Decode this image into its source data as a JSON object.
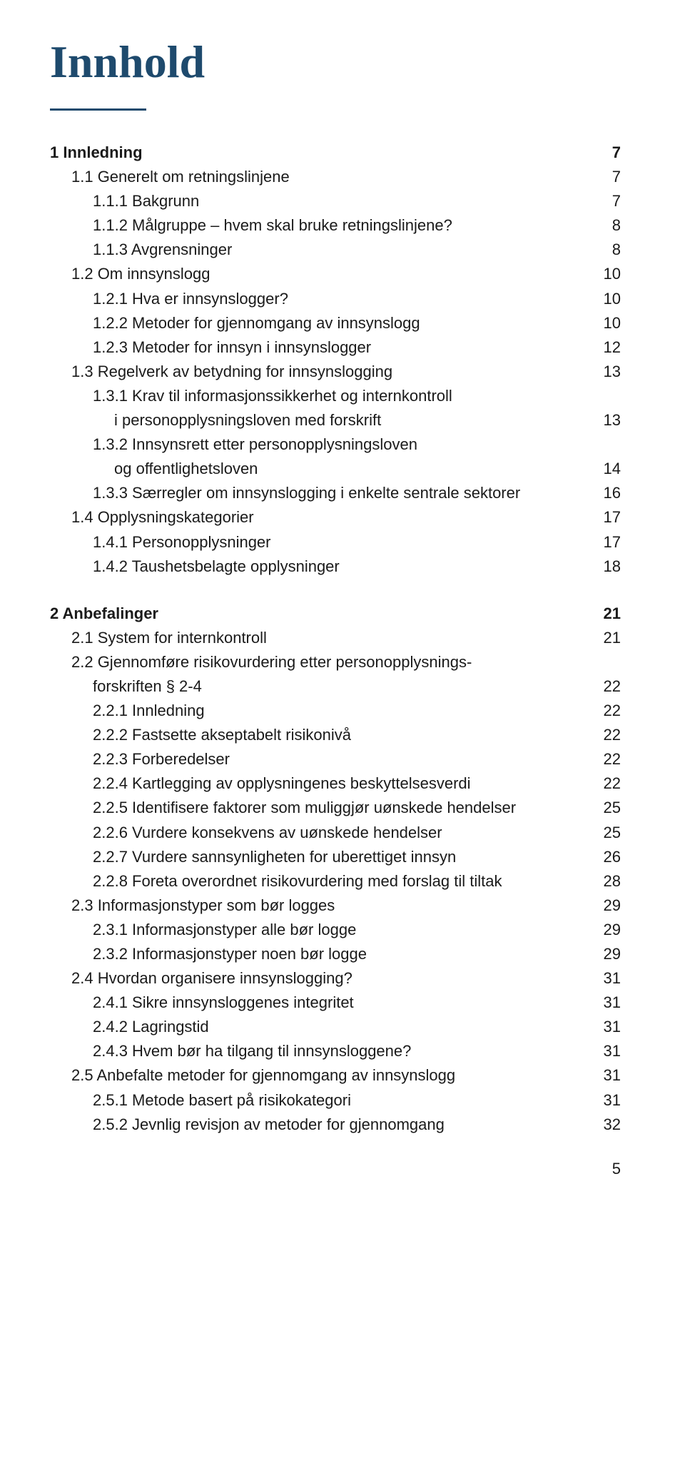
{
  "title": "Innhold",
  "page_number": "5",
  "colors": {
    "heading": "#1e4a6d",
    "text": "#1a1a1a",
    "background": "#ffffff"
  },
  "typography": {
    "title_fontsize_pt": 48,
    "body_fontsize_pt": 16,
    "title_font": "Georgia serif",
    "body_font": "sans-serif"
  },
  "sections": [
    {
      "entries": [
        {
          "label": "1 Innledning",
          "page": "7",
          "bold": true,
          "indent": 0
        },
        {
          "label": "1.1 Generelt om retningslinjene",
          "page": "7",
          "indent": 1
        },
        {
          "label": "1.1.1 Bakgrunn",
          "page": "7",
          "indent": 2
        },
        {
          "label": "1.1.2 Målgruppe – hvem skal bruke retningslinjene?",
          "page": "8",
          "indent": 2
        },
        {
          "label": "1.1.3 Avgrensninger",
          "page": "8",
          "indent": 2
        },
        {
          "label": "1.2 Om innsynslogg",
          "page": "10",
          "indent": 1
        },
        {
          "label": "1.2.1 Hva er innsynslogger?",
          "page": "10",
          "indent": 2
        },
        {
          "label": "1.2.2 Metoder for gjennomgang av innsynslogg",
          "page": "10",
          "indent": 2
        },
        {
          "label": "1.2.3 Metoder for innsyn i innsynslogger",
          "page": "12",
          "indent": 2
        },
        {
          "label": "1.3 Regelverk av betydning for innsynslogging",
          "page": "13",
          "indent": 1
        },
        {
          "label": "1.3.1 Krav til informasjonssikkerhet og internkontroll",
          "page": "",
          "indent": 2
        },
        {
          "label": "i personopplysningsloven med forskrift",
          "page": "13",
          "indent": 0,
          "cont": true
        },
        {
          "label": "1.3.2 Innsynsrett etter personopplysningsloven",
          "page": "",
          "indent": 2
        },
        {
          "label": "og offentlighetsloven",
          "page": "14",
          "indent": 0,
          "cont": true
        },
        {
          "label": "1.3.3 Særregler om innsynslogging i enkelte sentrale sektorer",
          "page": "16",
          "indent": 2
        },
        {
          "label": "1.4 Opplysningskategorier",
          "page": "17",
          "indent": 1
        },
        {
          "label": "1.4.1 Personopplysninger",
          "page": "17",
          "indent": 2
        },
        {
          "label": "1.4.2 Taushetsbelagte opplysninger",
          "page": "18",
          "indent": 2
        }
      ]
    },
    {
      "entries": [
        {
          "label": "2 Anbefalinger",
          "page": "21",
          "bold": true,
          "indent": 0
        },
        {
          "label": "2.1 System for internkontroll",
          "page": "21",
          "indent": 1
        },
        {
          "label": "2.2 Gjennomføre risikovurdering etter personopplysnings-",
          "page": "",
          "indent": 1
        },
        {
          "label": "forskriften § 2-4",
          "page": "22",
          "indent": 2
        },
        {
          "label": "2.2.1 Innledning",
          "page": "22",
          "indent": 2
        },
        {
          "label": "2.2.2 Fastsette akseptabelt risikonivå",
          "page": "22",
          "indent": 2
        },
        {
          "label": "2.2.3 Forberedelser",
          "page": "22",
          "indent": 2
        },
        {
          "label": "2.2.4 Kartlegging av opplysningenes beskyttelsesverdi",
          "page": "22",
          "indent": 2
        },
        {
          "label": "2.2.5 Identifisere faktorer som muliggjør uønskede hendelser",
          "page": "25",
          "indent": 2
        },
        {
          "label": "2.2.6 Vurdere konsekvens av uønskede hendelser",
          "page": "25",
          "indent": 2
        },
        {
          "label": "2.2.7 Vurdere sannsynligheten for uberettiget innsyn",
          "page": "26",
          "indent": 2
        },
        {
          "label": "2.2.8 Foreta overordnet risikovurdering med forslag til tiltak",
          "page": "28",
          "indent": 2
        },
        {
          "label": "2.3 Informasjonstyper som bør logges",
          "page": "29",
          "indent": 1
        },
        {
          "label": "2.3.1 Informasjonstyper alle bør logge",
          "page": "29",
          "indent": 2
        },
        {
          "label": "2.3.2 Informasjonstyper noen bør logge",
          "page": "29",
          "indent": 2
        },
        {
          "label": "2.4 Hvordan organisere innsynslogging?",
          "page": "31",
          "indent": 1
        },
        {
          "label": "2.4.1 Sikre innsynsloggenes integritet",
          "page": "31",
          "indent": 2
        },
        {
          "label": "2.4.2 Lagringstid",
          "page": "31",
          "indent": 2
        },
        {
          "label": "2.4.3 Hvem bør ha tilgang til innsynsloggene?",
          "page": "31",
          "indent": 2
        },
        {
          "label": "2.5 Anbefalte metoder for gjennomgang av innsynslogg",
          "page": "31",
          "indent": 1
        },
        {
          "label": "2.5.1 Metode basert på risikokategori",
          "page": "31",
          "indent": 2
        },
        {
          "label": "2.5.2 Jevnlig revisjon av metoder for gjennomgang",
          "page": "32",
          "indent": 2
        }
      ]
    }
  ]
}
